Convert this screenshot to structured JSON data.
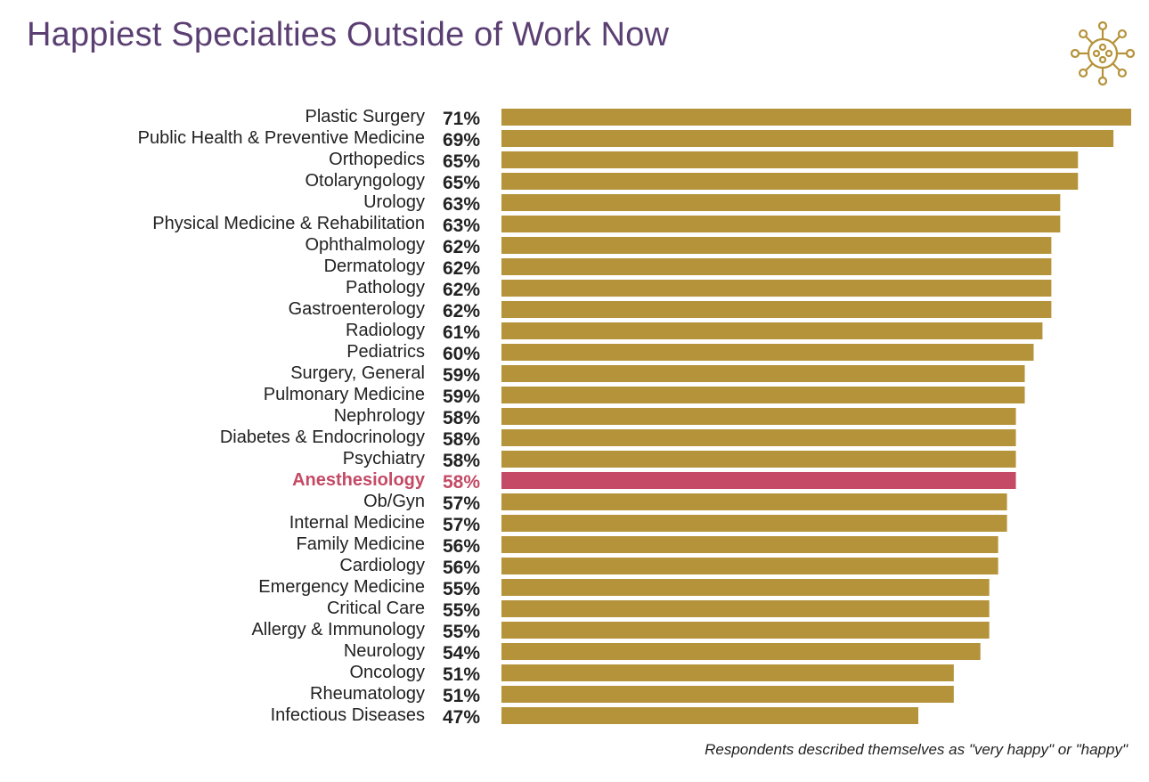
{
  "chart_data": {
    "type": "bar",
    "orientation": "horizontal",
    "title": "Happiest Specialties Outside of Work Now",
    "note": "Respondents described themselves as \"very happy\" or \"happy\"",
    "unit": "%",
    "xlim": [
      0,
      71
    ],
    "grid": false,
    "categories": [
      "Plastic Surgery",
      "Public Health & Preventive Medicine",
      "Orthopedics",
      "Otolaryngology",
      "Urology",
      "Physical Medicine & Rehabilitation",
      "Ophthalmology",
      "Dermatology",
      "Pathology",
      "Gastroenterology",
      "Radiology",
      "Pediatrics",
      "Surgery, General",
      "Pulmonary Medicine",
      "Nephrology",
      "Diabetes & Endocrinology",
      "Psychiatry",
      "Anesthesiology",
      "Ob/Gyn",
      "Internal Medicine",
      "Family Medicine",
      "Cardiology",
      "Emergency Medicine",
      "Critical Care",
      "Allergy & Immunology",
      "Neurology",
      "Oncology",
      "Rheumatology",
      "Infectious Diseases"
    ],
    "values": [
      71,
      69,
      65,
      65,
      63,
      63,
      62,
      62,
      62,
      62,
      61,
      60,
      59,
      59,
      58,
      58,
      58,
      58,
      57,
      57,
      56,
      56,
      55,
      55,
      55,
      54,
      51,
      51,
      47
    ],
    "highlight": "Anesthesiology",
    "colors": {
      "bar": "#B5933A",
      "highlight": "#C44A65",
      "title": "#5B3F73",
      "text": "#222222",
      "icon": "#B5933A"
    }
  },
  "icon": "virus-icon"
}
